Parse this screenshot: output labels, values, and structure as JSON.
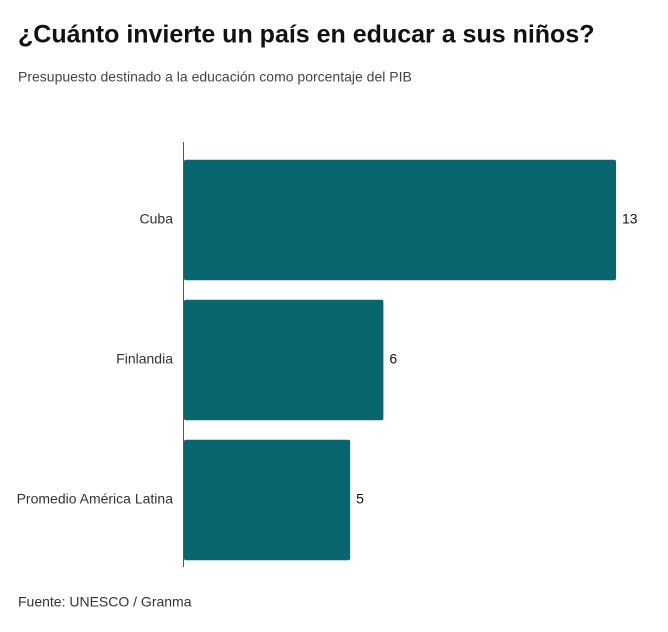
{
  "chart_data": {
    "type": "hbar",
    "title": "¿Cuánto invierte un país en educar a sus niños?",
    "subtitle": "Presupuesto destinado a la educación como porcentaje del PIB",
    "categories": [
      "Cuba",
      "Finlandia",
      "Promedio América Latina"
    ],
    "values": [
      13,
      6,
      5
    ],
    "color": "#09666f",
    "source": "Fuente: UNESCO / Granma"
  }
}
